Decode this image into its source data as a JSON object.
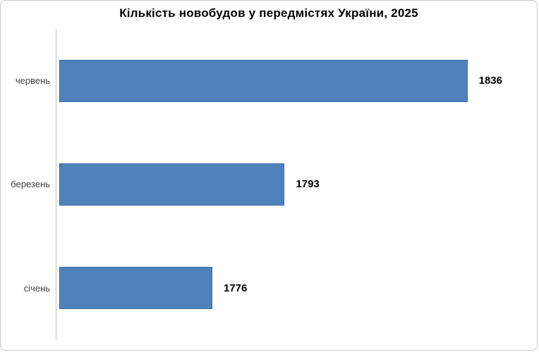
{
  "title": "Кількість новобудов у передмістях України, 2025",
  "colors": {
    "bar": "#4f81bd",
    "bar_border": "#3e6da5",
    "axis_line": "#c0c0c0",
    "title_text": "#000000",
    "category_label": "#3f3f3f",
    "value_label": "#000000"
  },
  "chart_data": {
    "type": "bar",
    "orientation": "horizontal",
    "title": "Кількість новобудов у передмістях України, 2025",
    "categories": [
      "червень",
      "березень",
      "січень"
    ],
    "values": [
      1836,
      1793,
      1776
    ],
    "xlabel": "",
    "ylabel": "",
    "xlim": [
      1740,
      1850
    ],
    "grid": false,
    "legend": false,
    "data_labels": true,
    "bar_color": "#4f81bd"
  }
}
